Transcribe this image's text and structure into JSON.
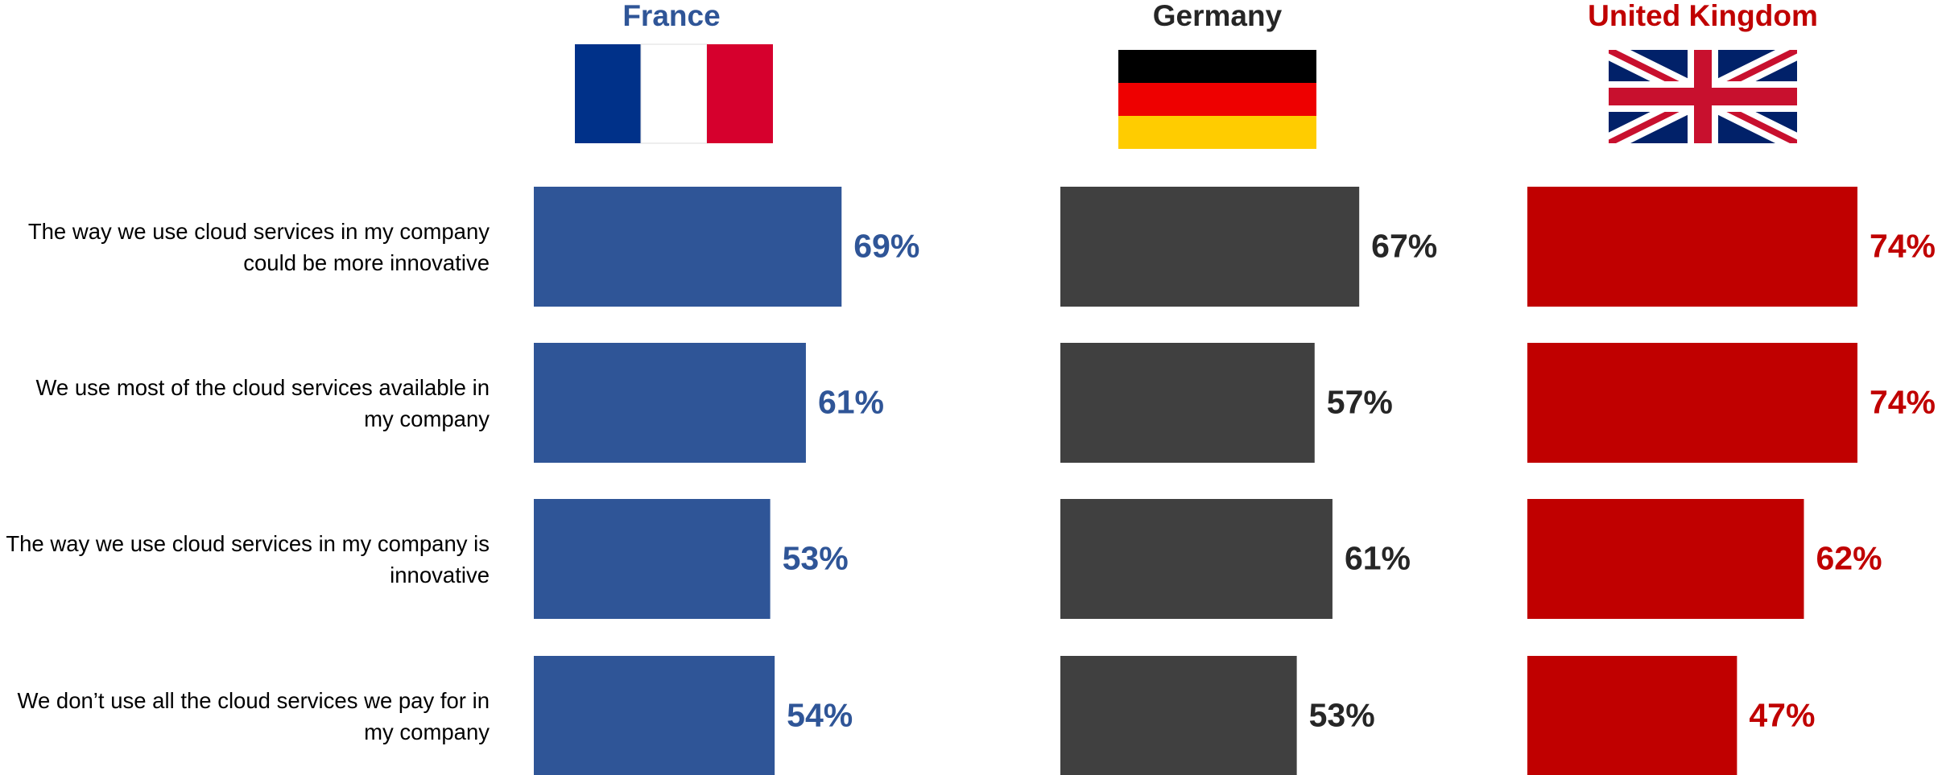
{
  "chart_data": {
    "type": "bar",
    "orientation": "horizontal",
    "categories": [
      "The way we use cloud services in my company could be more innovative",
      "We use most of the cloud services available in my company",
      "The way we use cloud services in my company is innovative",
      "We don’t use all the cloud services we pay for in my company"
    ],
    "series": [
      {
        "name": "France",
        "color": "#2f5597",
        "label_color": "#2f5597",
        "values": [
          69,
          61,
          53,
          54
        ],
        "value_labels": [
          "69%",
          "61%",
          "53%",
          "54%"
        ]
      },
      {
        "name": "Germany",
        "color": "#404040",
        "label_color": "#262626",
        "values": [
          67,
          57,
          61,
          53
        ],
        "value_labels": [
          "67%",
          "57%",
          "61%",
          "53%"
        ]
      },
      {
        "name": "United Kingdom",
        "color": "#c00000",
        "label_color": "#c00000",
        "values": [
          74,
          74,
          62,
          47
        ],
        "value_labels": [
          "74%",
          "74%",
          "62%",
          "47%"
        ]
      }
    ]
  }
}
